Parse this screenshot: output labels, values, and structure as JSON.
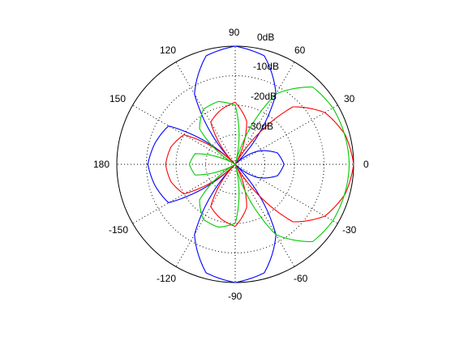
{
  "chart_data": {
    "type": "polar",
    "title": "",
    "theta_ticks": [
      "0",
      "30",
      "60",
      "90",
      "120",
      "150",
      "180",
      "-150",
      "-120",
      "-90",
      "-60",
      "-30"
    ],
    "theta_tick_degrees": [
      0,
      30,
      60,
      90,
      120,
      150,
      180,
      210,
      240,
      270,
      300,
      330
    ],
    "r_ticks": [
      "0dB",
      "-10dB",
      "-20dB",
      "-30dB"
    ],
    "r_tick_values": [
      0,
      -10,
      -20,
      -30
    ],
    "r_range_db": [
      -40,
      0
    ],
    "grid": true,
    "series": [
      {
        "color": "#0000ff",
        "theta_deg": [
          0,
          15,
          30,
          45,
          60,
          75,
          90,
          105,
          120,
          135,
          150,
          165,
          180
        ],
        "r_db": [
          -23.5,
          -25.2,
          -31,
          -40,
          -12.5,
          -2,
          0,
          -2,
          -12.5,
          -40,
          -14,
          -12,
          -10.5
        ]
      },
      {
        "color": "#ff0000",
        "theta_deg": [
          0,
          15,
          30,
          45,
          60,
          75,
          90,
          105,
          120,
          135,
          150,
          165,
          180
        ],
        "r_db": [
          0,
          -1.5,
          -5,
          -12.5,
          -40,
          -25,
          -19,
          -21,
          -23.5,
          -40,
          -20,
          -17.5,
          -16.5
        ]
      },
      {
        "color": "#00cc00",
        "theta_deg": [
          0,
          15,
          30,
          45,
          60,
          75,
          90,
          105,
          120,
          135,
          150,
          165,
          180
        ],
        "r_db": [
          -1.5,
          -1.7,
          -1.9,
          -3,
          -12.5,
          -40,
          -20,
          -18,
          -18.5,
          -23,
          -40,
          -26,
          -24.5
        ]
      }
    ]
  }
}
